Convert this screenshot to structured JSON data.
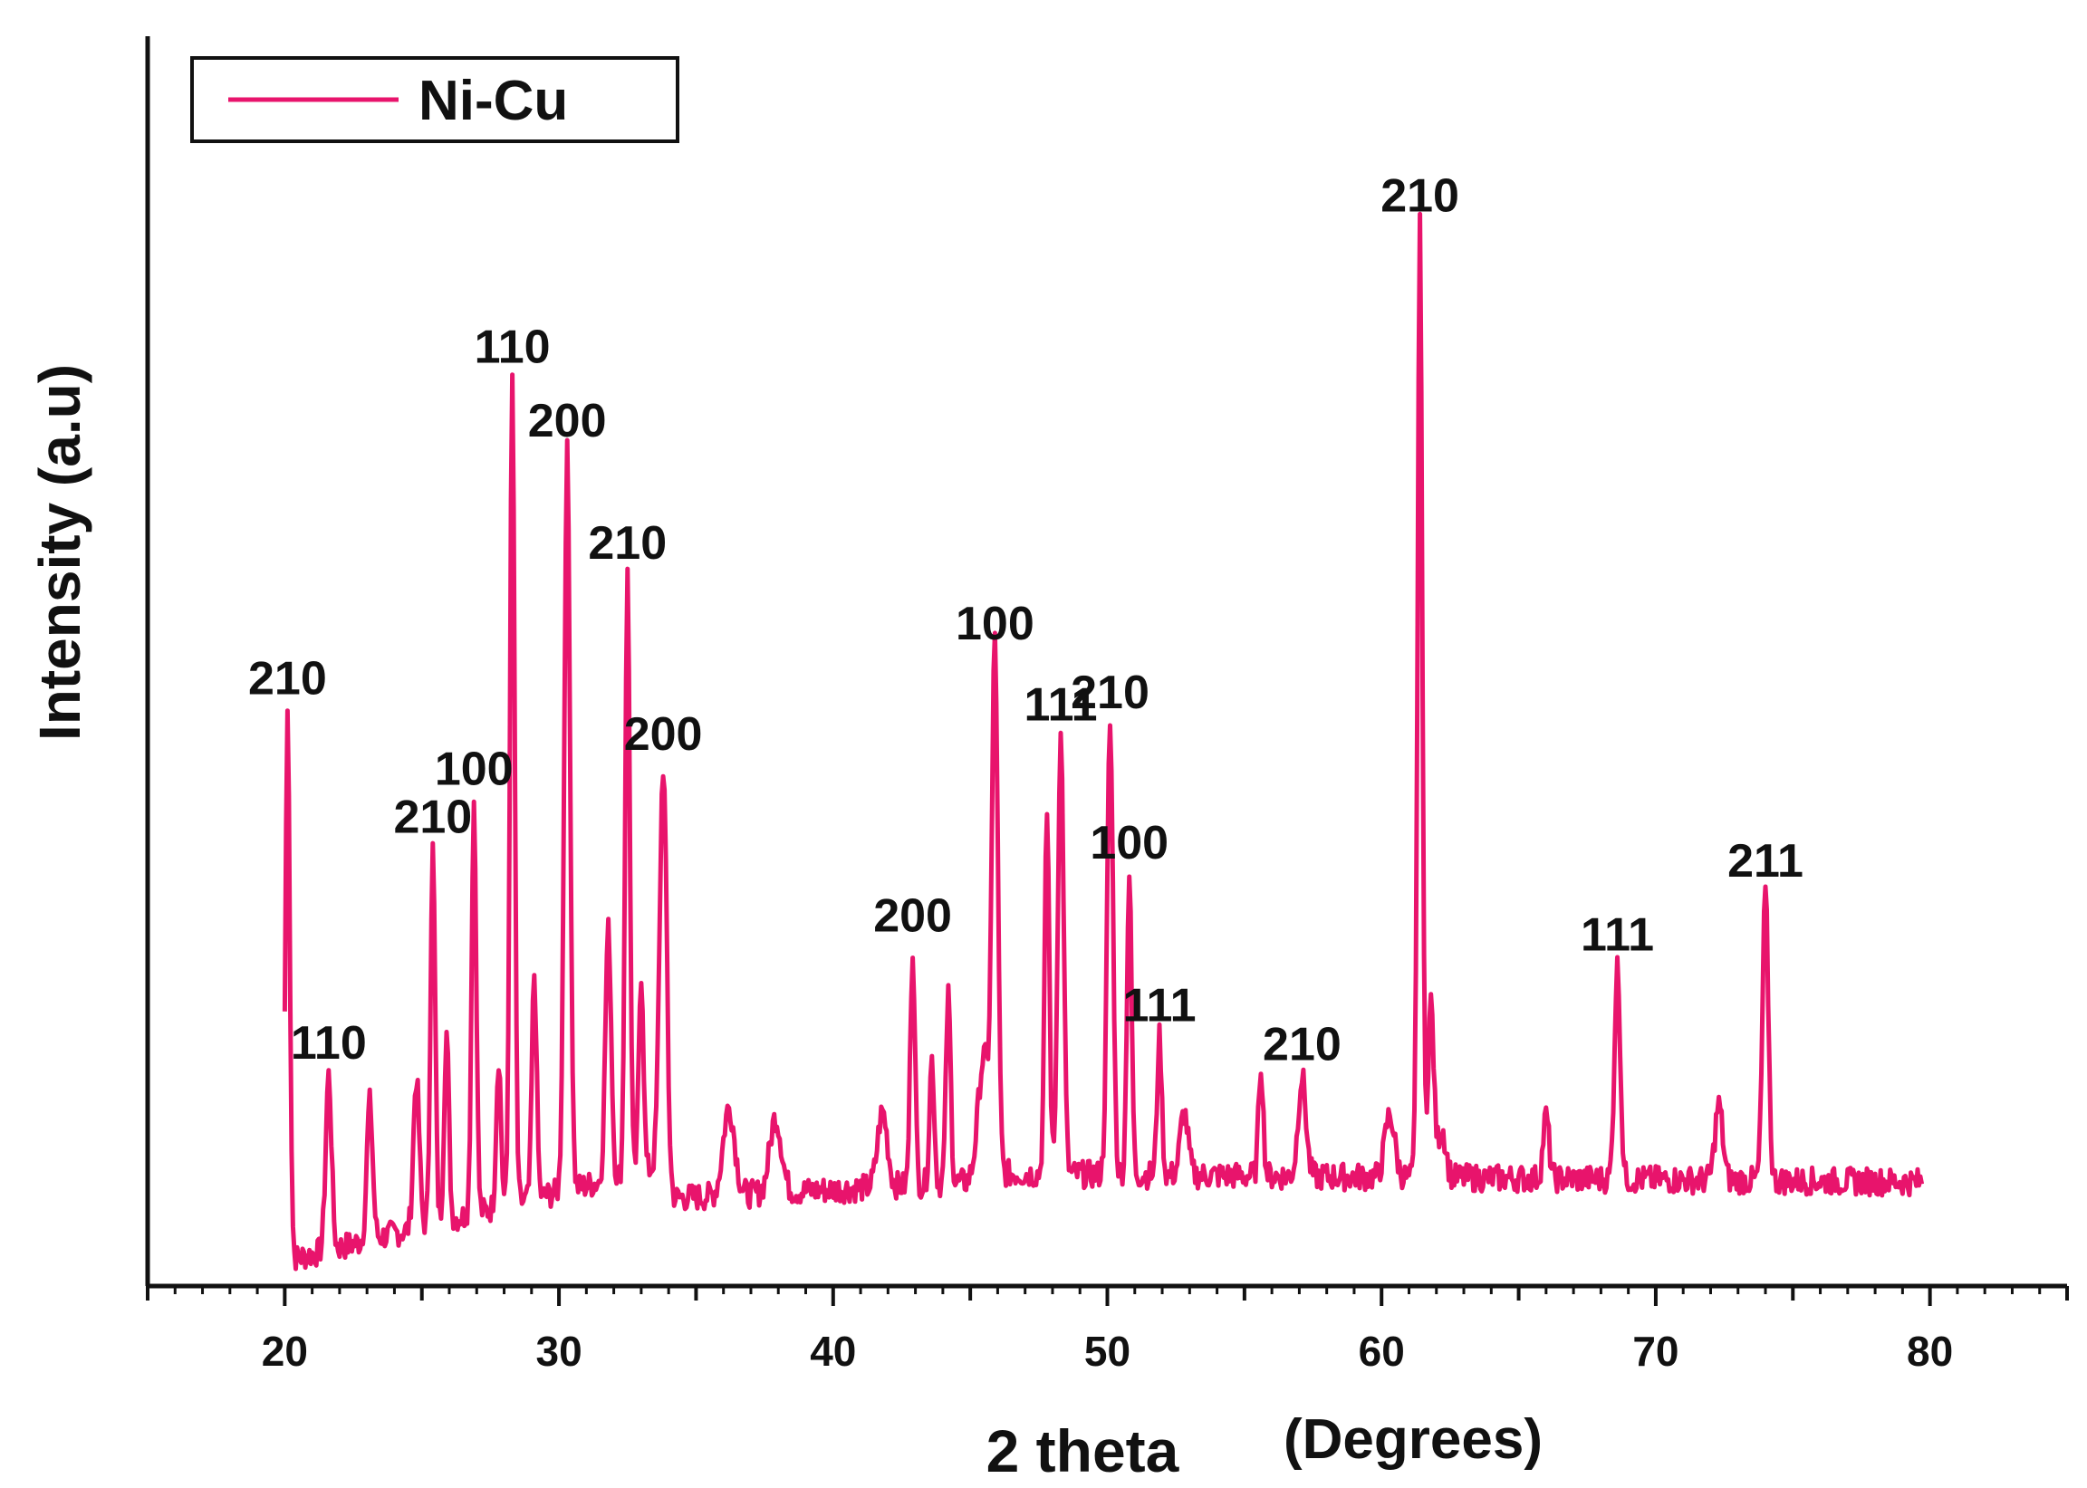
{
  "chart_data": {
    "type": "line",
    "xlabel": "2 theta",
    "xlabel_unit": "(Degrees)",
    "ylabel": "Intensity (a.u)",
    "xlim": [
      15,
      85
    ],
    "ylim": [
      0,
      100
    ],
    "x_ticks": [
      20,
      30,
      40,
      50,
      60,
      70,
      80
    ],
    "grid": false,
    "legend_position": "top-left",
    "y_ticks_shown": false,
    "series": [
      {
        "name": "Ni-Cu",
        "color": "#e8146c",
        "peaks": [
          {
            "x": 20.1,
            "y": 44,
            "w": 0.12
          },
          {
            "x": 21.6,
            "y": 14,
            "w": 0.15
          },
          {
            "x": 23.1,
            "y": 11,
            "w": 0.15
          },
          {
            "x": 24.8,
            "y": 12,
            "w": 0.15
          },
          {
            "x": 25.4,
            "y": 30,
            "w": 0.12
          },
          {
            "x": 25.9,
            "y": 15,
            "w": 0.12
          },
          {
            "x": 26.9,
            "y": 33,
            "w": 0.12
          },
          {
            "x": 27.8,
            "y": 12,
            "w": 0.12
          },
          {
            "x": 28.3,
            "y": 66,
            "w": 0.12
          },
          {
            "x": 29.1,
            "y": 18,
            "w": 0.12
          },
          {
            "x": 30.3,
            "y": 59,
            "w": 0.15
          },
          {
            "x": 31.8,
            "y": 20,
            "w": 0.15
          },
          {
            "x": 32.5,
            "y": 48,
            "w": 0.12
          },
          {
            "x": 33.0,
            "y": 16,
            "w": 0.12
          },
          {
            "x": 33.8,
            "y": 32,
            "w": 0.18
          },
          {
            "x": 36.2,
            "y": 7,
            "w": 0.3
          },
          {
            "x": 37.9,
            "y": 6,
            "w": 0.3
          },
          {
            "x": 41.8,
            "y": 6,
            "w": 0.25
          },
          {
            "x": 42.9,
            "y": 19,
            "w": 0.12
          },
          {
            "x": 43.6,
            "y": 10,
            "w": 0.12
          },
          {
            "x": 44.2,
            "y": 15,
            "w": 0.12
          },
          {
            "x": 45.5,
            "y": 10,
            "w": 0.3
          },
          {
            "x": 45.9,
            "y": 42,
            "w": 0.15
          },
          {
            "x": 47.8,
            "y": 29,
            "w": 0.12
          },
          {
            "x": 48.3,
            "y": 35,
            "w": 0.15
          },
          {
            "x": 50.1,
            "y": 36,
            "w": 0.15
          },
          {
            "x": 50.8,
            "y": 24,
            "w": 0.12
          },
          {
            "x": 51.9,
            "y": 11,
            "w": 0.12
          },
          {
            "x": 52.8,
            "y": 5,
            "w": 0.2
          },
          {
            "x": 55.6,
            "y": 9,
            "w": 0.12
          },
          {
            "x": 57.1,
            "y": 8,
            "w": 0.2
          },
          {
            "x": 60.3,
            "y": 5,
            "w": 0.25
          },
          {
            "x": 61.4,
            "y": 76,
            "w": 0.12
          },
          {
            "x": 61.8,
            "y": 14,
            "w": 0.15
          },
          {
            "x": 62.2,
            "y": 4,
            "w": 0.2
          },
          {
            "x": 66.0,
            "y": 5,
            "w": 0.15
          },
          {
            "x": 68.6,
            "y": 17,
            "w": 0.15
          },
          {
            "x": 72.3,
            "y": 6,
            "w": 0.2
          },
          {
            "x": 74.0,
            "y": 23,
            "w": 0.15
          }
        ]
      }
    ],
    "annotations": [
      {
        "x": 20.1,
        "y": 44,
        "text": "210"
      },
      {
        "x": 21.6,
        "y": 14,
        "text": "110"
      },
      {
        "x": 25.4,
        "y": 30,
        "text": "210"
      },
      {
        "x": 26.9,
        "y": 33,
        "text": "100"
      },
      {
        "x": 28.3,
        "y": 66,
        "text": "110"
      },
      {
        "x": 30.3,
        "y": 59,
        "text": "200"
      },
      {
        "x": 32.5,
        "y": 48,
        "text": "210"
      },
      {
        "x": 33.8,
        "y": 32,
        "text": "200"
      },
      {
        "x": 42.9,
        "y": 19,
        "text": "200"
      },
      {
        "x": 45.9,
        "y": 42,
        "text": "100"
      },
      {
        "x": 48.3,
        "y": 35,
        "text": "111"
      },
      {
        "x": 50.1,
        "y": 36,
        "text": "210"
      },
      {
        "x": 50.8,
        "y": 24,
        "text": "100"
      },
      {
        "x": 51.9,
        "y": 11,
        "text": "111"
      },
      {
        "x": 57.1,
        "y": 8,
        "text": "210"
      },
      {
        "x": 61.4,
        "y": 76,
        "text": "210"
      },
      {
        "x": 68.6,
        "y": 17,
        "text": "111"
      },
      {
        "x": 74.0,
        "y": 23,
        "text": "211"
      }
    ]
  }
}
